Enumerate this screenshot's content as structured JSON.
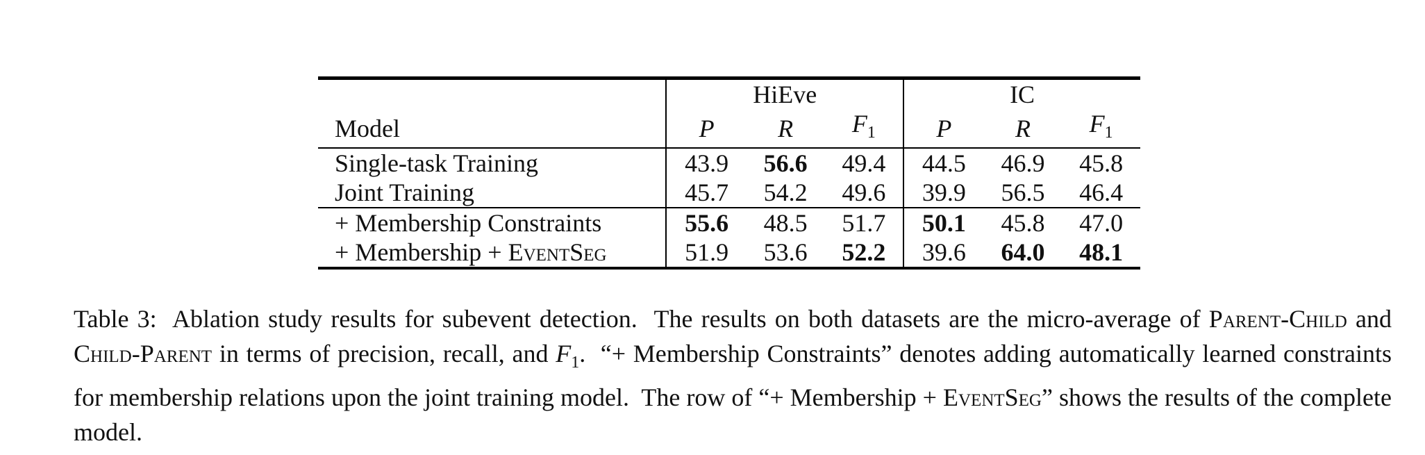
{
  "table": {
    "group_headers": [
      "HiEve",
      "IC"
    ],
    "model_header": "Model",
    "metric_headers": [
      "P",
      "R",
      "F",
      "P",
      "R",
      "F"
    ],
    "rows": [
      {
        "model": "Single-task Training",
        "values": [
          "43.9",
          "56.6",
          "49.4",
          "44.5",
          "46.9",
          "45.8"
        ],
        "bold": [
          false,
          true,
          false,
          false,
          false,
          false
        ]
      },
      {
        "model": "Joint Training",
        "values": [
          "45.7",
          "54.2",
          "49.6",
          "39.9",
          "56.5",
          "46.4"
        ],
        "bold": [
          false,
          false,
          false,
          false,
          false,
          false
        ]
      },
      {
        "model": "+ Membership Constraints",
        "values": [
          "55.6",
          "48.5",
          "51.7",
          "50.1",
          "45.8",
          "47.0"
        ],
        "bold": [
          true,
          false,
          false,
          true,
          false,
          false
        ]
      },
      {
        "model_prefix": "+ Membership + ",
        "model_sc": "EventSeg",
        "values": [
          "51.9",
          "53.6",
          "52.2",
          "39.6",
          "64.0",
          "48.1"
        ],
        "bold": [
          false,
          false,
          true,
          false,
          true,
          true
        ]
      }
    ]
  },
  "caption": {
    "label": "Table 3:",
    "s1": "Ablation study results for subevent detection.",
    "s2a": "The results on both datasets are the micro-average of",
    "sc_parent_child": "Parent-Child",
    "and": "and",
    "sc_child_parent": "Child-Parent",
    "s2b": "in terms of precision, recall, and",
    "f1": "F",
    "f1_sub": "1",
    "s2c": ".",
    "s3": "“+ Membership Constraints” denotes adding automatically learned constraints for membership relations upon the joint training model.",
    "s4a": "The row of “+ Membership +",
    "sc_eventseg": "EventSeg",
    "s4b": "” shows the results of the complete model."
  }
}
